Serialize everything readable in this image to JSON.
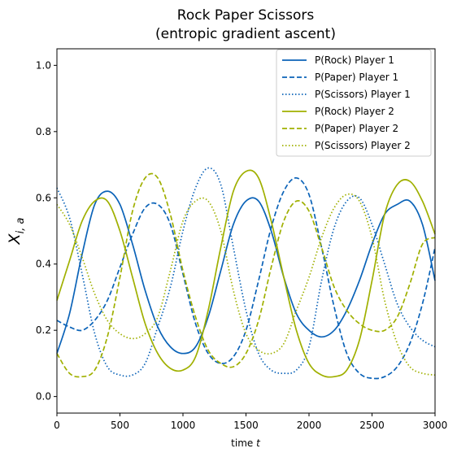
{
  "chart_data": {
    "type": "line",
    "title_line1": "Rock Paper Scissors",
    "title_line2": "(entropic gradient ascent)",
    "xlabel_text": "time ",
    "xlabel_var": "t",
    "ylabel_main": "X",
    "ylabel_sub": "i, a",
    "xlim": [
      0,
      3000
    ],
    "ylim": [
      -0.05,
      1.05
    ],
    "xticks": [
      0,
      500,
      1000,
      1500,
      2000,
      2500,
      3000
    ],
    "yticks": [
      0.0,
      0.2,
      0.4,
      0.6,
      0.8,
      1.0
    ],
    "xtick_labels": [
      "0",
      "500",
      "1000",
      "1500",
      "2000",
      "2500",
      "3000"
    ],
    "ytick_labels": [
      "0.0",
      "0.2",
      "0.4",
      "0.6",
      "0.8",
      "1.0"
    ],
    "grid": false,
    "legend_position": "top-right",
    "x": [
      0,
      100,
      200,
      300,
      400,
      500,
      600,
      700,
      800,
      900,
      1000,
      1100,
      1200,
      1300,
      1400,
      1500,
      1600,
      1700,
      1800,
      1900,
      2000,
      2100,
      2200,
      2300,
      2400,
      2500,
      2600,
      2700,
      2800,
      2900,
      3000
    ],
    "series": [
      {
        "name": "P(Rock) Player 1",
        "color": "#0b63b8",
        "dash": "solid",
        "values": [
          0.13,
          0.25,
          0.43,
          0.58,
          0.62,
          0.58,
          0.46,
          0.32,
          0.21,
          0.15,
          0.13,
          0.15,
          0.24,
          0.38,
          0.52,
          0.59,
          0.59,
          0.5,
          0.36,
          0.25,
          0.2,
          0.18,
          0.2,
          0.26,
          0.35,
          0.46,
          0.55,
          0.58,
          0.59,
          0.52,
          0.35
        ]
      },
      {
        "name": "P(Paper) Player 1",
        "color": "#0b63b8",
        "dash": "dashed",
        "values": [
          0.23,
          0.21,
          0.2,
          0.23,
          0.29,
          0.39,
          0.49,
          0.57,
          0.58,
          0.52,
          0.37,
          0.22,
          0.13,
          0.1,
          0.12,
          0.2,
          0.35,
          0.51,
          0.62,
          0.66,
          0.61,
          0.45,
          0.27,
          0.13,
          0.07,
          0.055,
          0.06,
          0.09,
          0.16,
          0.28,
          0.45
        ]
      },
      {
        "name": "P(Scissors) Player 1",
        "color": "#0b63b8",
        "dash": "dotted",
        "values": [
          0.63,
          0.54,
          0.37,
          0.19,
          0.09,
          0.065,
          0.065,
          0.1,
          0.21,
          0.33,
          0.5,
          0.63,
          0.69,
          0.64,
          0.45,
          0.26,
          0.13,
          0.08,
          0.07,
          0.08,
          0.15,
          0.35,
          0.51,
          0.59,
          0.6,
          0.52,
          0.4,
          0.28,
          0.21,
          0.17,
          0.15
        ]
      },
      {
        "name": "P(Rock) Player 2",
        "color": "#a0b000",
        "dash": "solid",
        "values": [
          0.29,
          0.41,
          0.53,
          0.59,
          0.59,
          0.5,
          0.36,
          0.22,
          0.13,
          0.085,
          0.08,
          0.12,
          0.26,
          0.45,
          0.62,
          0.68,
          0.66,
          0.53,
          0.36,
          0.2,
          0.1,
          0.065,
          0.06,
          0.08,
          0.17,
          0.35,
          0.55,
          0.64,
          0.65,
          0.59,
          0.49
        ]
      },
      {
        "name": "P(Paper) Player 2",
        "color": "#a0b000",
        "dash": "dashed",
        "values": [
          0.13,
          0.07,
          0.06,
          0.08,
          0.18,
          0.36,
          0.56,
          0.66,
          0.66,
          0.55,
          0.38,
          0.24,
          0.14,
          0.1,
          0.09,
          0.13,
          0.23,
          0.39,
          0.53,
          0.59,
          0.56,
          0.45,
          0.33,
          0.26,
          0.22,
          0.2,
          0.2,
          0.24,
          0.34,
          0.46,
          0.48
        ]
      },
      {
        "name": "P(Scissors) Player 2",
        "color": "#a0b000",
        "dash": "dotted",
        "values": [
          0.58,
          0.52,
          0.42,
          0.31,
          0.23,
          0.19,
          0.175,
          0.19,
          0.24,
          0.38,
          0.53,
          0.59,
          0.59,
          0.5,
          0.32,
          0.19,
          0.14,
          0.13,
          0.16,
          0.26,
          0.36,
          0.48,
          0.57,
          0.61,
          0.59,
          0.48,
          0.29,
          0.16,
          0.09,
          0.07,
          0.065
        ]
      }
    ]
  }
}
